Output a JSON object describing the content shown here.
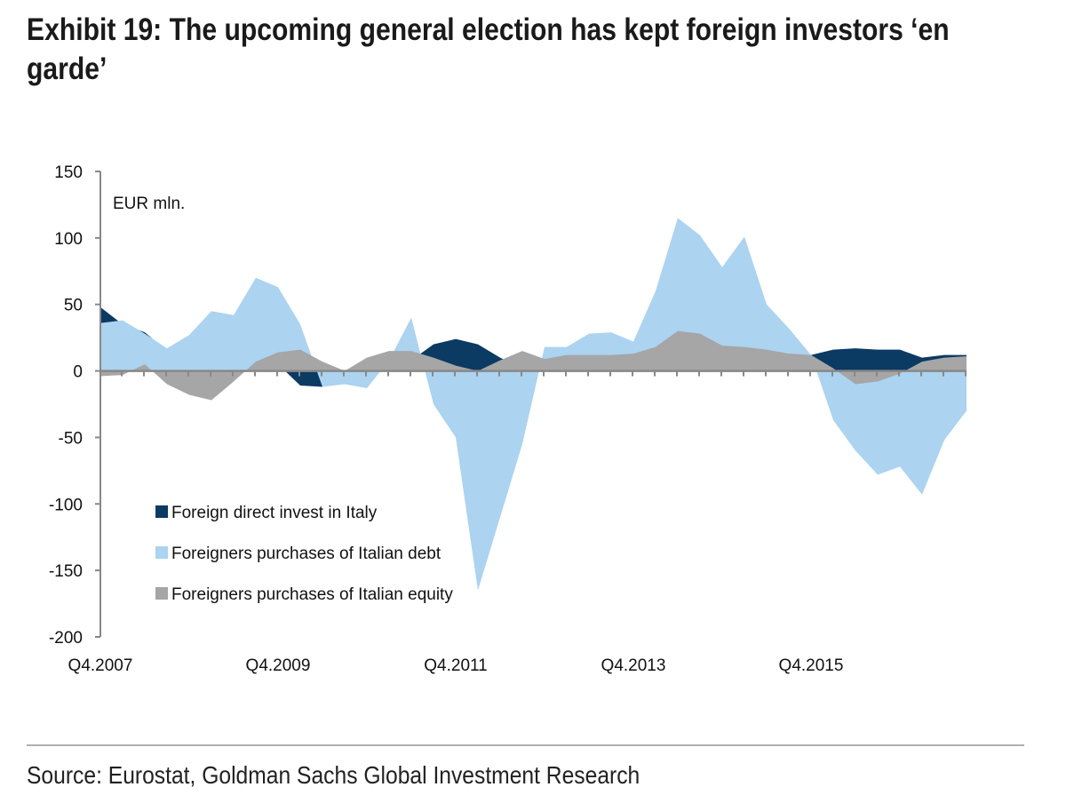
{
  "title": "Exhibit 19: The upcoming general election has kept foreign investors ‘en garde’",
  "source": "Source: Eurostat, Goldman Sachs Global Investment Research",
  "chart_data": {
    "type": "area",
    "title": "Exhibit 19: The upcoming general election has kept foreign investors ‘en garde’",
    "ylabel": "EUR mln.",
    "xlabel": "",
    "ylim": [
      -200,
      150
    ],
    "yticks": [
      150,
      100,
      50,
      0,
      -50,
      -100,
      -150,
      -200
    ],
    "ytick_labels": [
      "150",
      "100",
      "50",
      "0",
      "-50",
      "-100",
      "-150",
      "-200"
    ],
    "xtick_labels": [
      "Q4.2007",
      "Q4.2009",
      "Q4.2011",
      "Q4.2013",
      "Q4.2015"
    ],
    "x_start": "Q4.2007",
    "x_end": "Q3.2017",
    "n_points": 40,
    "legend_position": "bottom-left",
    "series": [
      {
        "name": "Foreign direct invest in Italy",
        "color": "#0b3a63",
        "values": [
          48,
          35,
          29,
          15,
          10,
          8,
          5,
          5,
          5,
          -11,
          -12,
          0,
          5,
          7,
          8,
          20,
          24,
          20,
          10,
          2,
          3,
          5,
          5,
          5,
          5,
          5,
          5,
          5,
          5,
          5,
          5,
          8,
          12,
          16,
          17,
          16,
          16,
          10,
          12,
          12
        ]
      },
      {
        "name": "Foreigners purchases of Italian debt",
        "color": "#acd3f0",
        "values": [
          36,
          38,
          28,
          17,
          27,
          45,
          42,
          70,
          63,
          35,
          -12,
          -10,
          -13,
          8,
          40,
          -25,
          -50,
          -165,
          -110,
          -55,
          18,
          18,
          28,
          29,
          22,
          60,
          115,
          102,
          78,
          101,
          50,
          32,
          12,
          -37,
          -60,
          -78,
          -72,
          -93,
          -52,
          -30
        ]
      },
      {
        "name": "Foreigners purchases of Italian equity",
        "color": "#a6a6a6",
        "values": [
          -4,
          -3,
          5,
          -10,
          -18,
          -22,
          -8,
          7,
          14,
          16,
          7,
          0,
          10,
          15,
          15,
          10,
          4,
          0,
          8,
          15,
          9,
          12,
          12,
          12,
          13,
          18,
          30,
          28,
          19,
          18,
          16,
          13,
          12,
          2,
          -10,
          -8,
          -2,
          7,
          10,
          11
        ]
      }
    ]
  }
}
